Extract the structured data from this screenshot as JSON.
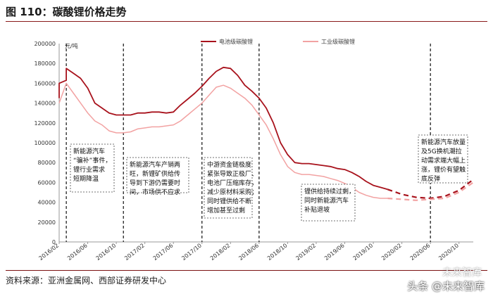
{
  "header": {
    "title": "图 110：碳酸锂价格走势"
  },
  "footer": {
    "source": "资料来源：亚洲金属网、西部证券研发中心",
    "watermark": "头条 @未来智库",
    "watermark_brand": "未来智库"
  },
  "colors": {
    "battery": "#a8121c",
    "industrial": "#f2a2a2",
    "forecast_dash": "#a8121c",
    "divider": "#222222"
  },
  "chart_data": {
    "type": "line",
    "title": "图 110：碳酸锂价格走势",
    "ylabel": "元/吨",
    "xlabel": "",
    "ylim": [
      0,
      200000
    ],
    "yticks": [
      0,
      20000,
      40000,
      60000,
      80000,
      100000,
      120000,
      140000,
      160000,
      180000,
      200000
    ],
    "ytick_labels": [
      "0",
      "20000",
      "40000",
      "60000",
      "80000",
      "100000",
      "120000",
      "140000",
      "160000",
      "180000",
      "200000"
    ],
    "xlim": [
      "2016/02",
      "2020/12"
    ],
    "xtick_labels": [
      "2016/02",
      "2016/06",
      "2016/10",
      "2017/02",
      "2017/06",
      "2017/10",
      "2018/02",
      "2018/06",
      "2018/10",
      "2019/02",
      "2019/06",
      "2019/10",
      "2020/02",
      "2020/06",
      "2020/10"
    ],
    "legend_position": "top-right",
    "grid": false,
    "series": [
      {
        "name": "电池级碳酸锂",
        "style": "solid",
        "points": [
          [
            "2016/02",
            145000
          ],
          [
            "2016/02",
            160000
          ],
          [
            "2016/03",
            163000
          ],
          [
            "2016/03",
            175000
          ],
          [
            "2016/04",
            170000
          ],
          [
            "2016/05",
            165000
          ],
          [
            "2016/06",
            155000
          ],
          [
            "2016/07",
            140000
          ],
          [
            "2016/08",
            135000
          ],
          [
            "2016/09",
            130000
          ],
          [
            "2016/10",
            128000
          ],
          [
            "2016/11",
            128000
          ],
          [
            "2016/12",
            128000
          ],
          [
            "2017/01",
            130000
          ],
          [
            "2017/02",
            130000
          ],
          [
            "2017/03",
            131000
          ],
          [
            "2017/04",
            131000
          ],
          [
            "2017/05",
            130000
          ],
          [
            "2017/06",
            131000
          ],
          [
            "2017/07",
            138000
          ],
          [
            "2017/08",
            144000
          ],
          [
            "2017/09",
            150000
          ],
          [
            "2017/10",
            157000
          ],
          [
            "2017/11",
            165000
          ],
          [
            "2017/12",
            172000
          ],
          [
            "2018/01",
            176000
          ],
          [
            "2018/02",
            175000
          ],
          [
            "2018/03",
            168000
          ],
          [
            "2018/04",
            158000
          ],
          [
            "2018/05",
            152000
          ],
          [
            "2018/06",
            145000
          ],
          [
            "2018/07",
            135000
          ],
          [
            "2018/08",
            120000
          ],
          [
            "2018/09",
            100000
          ],
          [
            "2018/10",
            88000
          ],
          [
            "2018/11",
            80000
          ],
          [
            "2018/12",
            79000
          ],
          [
            "2019/01",
            79000
          ],
          [
            "2019/02",
            78000
          ],
          [
            "2019/03",
            77000
          ],
          [
            "2019/04",
            76000
          ],
          [
            "2019/05",
            74000
          ],
          [
            "2019/06",
            73000
          ],
          [
            "2019/07",
            70000
          ],
          [
            "2019/08",
            66000
          ],
          [
            "2019/09",
            61000
          ],
          [
            "2019/10",
            57000
          ],
          [
            "2019/11",
            55000
          ],
          [
            "2019/12",
            53000
          ]
        ]
      },
      {
        "name": "工业级碳酸锂",
        "style": "solid",
        "points": [
          [
            "2016/02",
            140000
          ],
          [
            "2016/03",
            160000
          ],
          [
            "2016/04",
            150000
          ],
          [
            "2016/05",
            140000
          ],
          [
            "2016/06",
            130000
          ],
          [
            "2016/07",
            122000
          ],
          [
            "2016/08",
            118000
          ],
          [
            "2016/09",
            112000
          ],
          [
            "2016/10",
            110000
          ],
          [
            "2016/11",
            110000
          ],
          [
            "2016/12",
            111000
          ],
          [
            "2017/01",
            114000
          ],
          [
            "2017/02",
            115000
          ],
          [
            "2017/03",
            116000
          ],
          [
            "2017/04",
            116000
          ],
          [
            "2017/05",
            117000
          ],
          [
            "2017/06",
            118000
          ],
          [
            "2017/07",
            122000
          ],
          [
            "2017/08",
            128000
          ],
          [
            "2017/09",
            134000
          ],
          [
            "2017/10",
            140000
          ],
          [
            "2017/11",
            148000
          ],
          [
            "2017/12",
            156000
          ],
          [
            "2018/01",
            158000
          ],
          [
            "2018/02",
            155000
          ],
          [
            "2018/03",
            150000
          ],
          [
            "2018/04",
            145000
          ],
          [
            "2018/05",
            138000
          ],
          [
            "2018/06",
            128000
          ],
          [
            "2018/07",
            118000
          ],
          [
            "2018/08",
            104000
          ],
          [
            "2018/09",
            88000
          ],
          [
            "2018/10",
            76000
          ],
          [
            "2018/11",
            70000
          ],
          [
            "2018/12",
            68000
          ],
          [
            "2019/01",
            68000
          ],
          [
            "2019/02",
            67000
          ],
          [
            "2019/03",
            66000
          ],
          [
            "2019/04",
            64000
          ],
          [
            "2019/05",
            62000
          ],
          [
            "2019/06",
            59000
          ],
          [
            "2019/07",
            55000
          ],
          [
            "2019/08",
            50000
          ],
          [
            "2019/09",
            47000
          ],
          [
            "2019/10",
            45000
          ],
          [
            "2019/11",
            44000
          ],
          [
            "2019/12",
            44000
          ]
        ]
      },
      {
        "name": "电池级碳酸锂（预测）",
        "style": "dashed",
        "points": [
          [
            "2019/12",
            53000
          ],
          [
            "2020/02",
            48000
          ],
          [
            "2020/04",
            45000
          ],
          [
            "2020/06",
            44000
          ],
          [
            "2020/08",
            46000
          ],
          [
            "2020/10",
            52000
          ],
          [
            "2020/12",
            63000
          ]
        ]
      },
      {
        "name": "工业级碳酸锂（预测）",
        "style": "dashed",
        "points": [
          [
            "2019/12",
            44000
          ],
          [
            "2020/02",
            43000
          ],
          [
            "2020/04",
            42000
          ],
          [
            "2020/06",
            43000
          ],
          [
            "2020/08",
            44000
          ],
          [
            "2020/10",
            50000
          ],
          [
            "2020/12",
            60000
          ]
        ]
      }
    ],
    "dividers": [
      "2016/03",
      "2016/11",
      "2017/10",
      "2018/06",
      "2020/06"
    ],
    "annotations": [
      {
        "lines": [
          "新能源汽车",
          "“骗补”事件，",
          "锂行业需求",
          "短期降温"
        ]
      },
      {
        "lines": [
          "新能源汽车产销两",
          "旺，新锂矿供给传",
          "导到下游仍需要时",
          "间，市场供不应求"
        ]
      },
      {
        "lines": [
          "中游资金链极度",
          "紧张导致正极厂、",
          "电池厂压缩库存，",
          "减少原材料采购；",
          "同时锂供给不断",
          "增加甚至过剩"
        ]
      },
      {
        "lines": [
          "锂供给持续过剩，",
          "同时新能源汽车",
          "补贴退坡"
        ]
      },
      {
        "lines": [
          "新能源汽车放量",
          "及5G换机潮拉",
          "动需求端大幅上",
          "涨，锂价有望触",
          "底反弹"
        ]
      }
    ]
  }
}
